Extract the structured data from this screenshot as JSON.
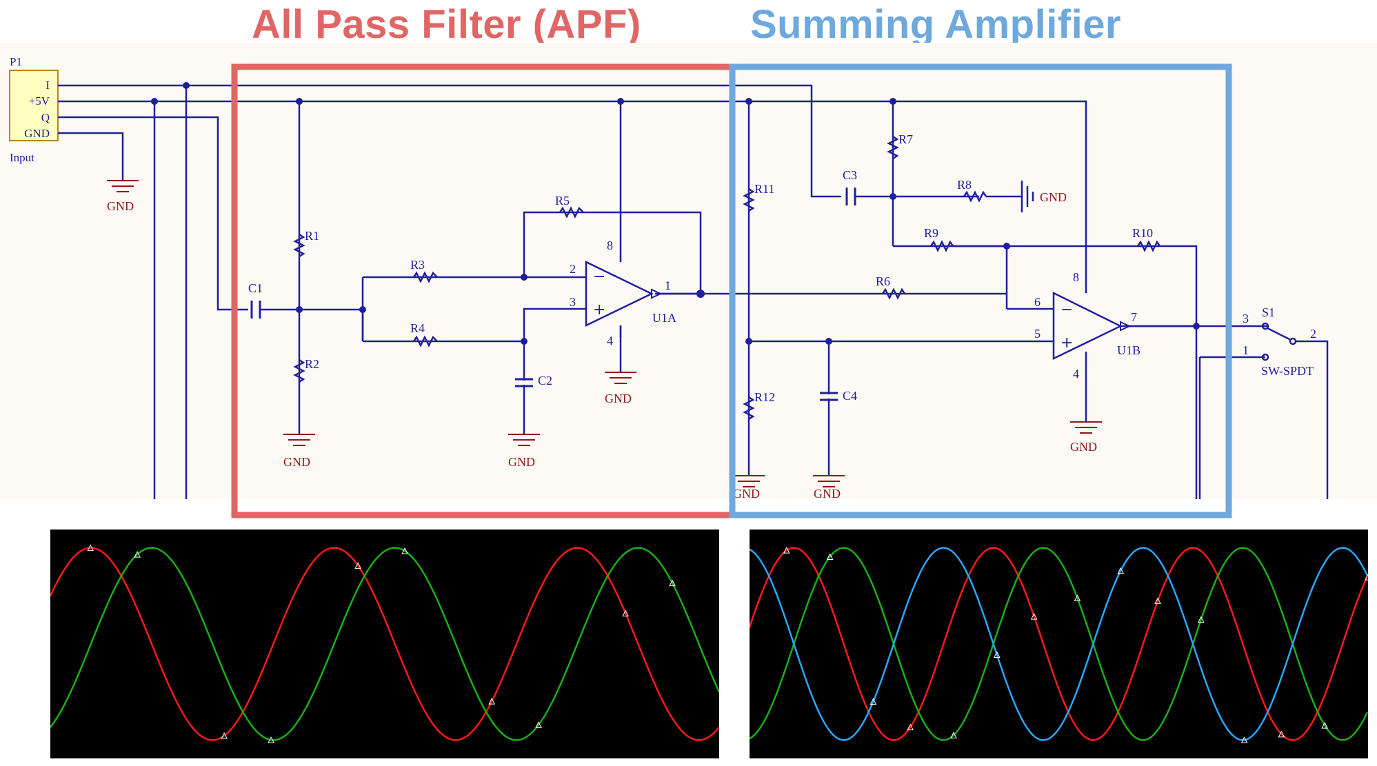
{
  "titles": {
    "apf": "All Pass Filter (APF)",
    "summing": "Summing Amplifier"
  },
  "colors": {
    "apf_box": "#e06666",
    "summing_box": "#6fa8dc",
    "wire": "#1f1f9e",
    "gnd": "#8b1a1a",
    "label": "#1f1f9e",
    "schematic_bg": "#fdf9f4",
    "trace_red": "#ff1a1a",
    "trace_green": "#18b018",
    "trace_blue": "#2aa8ff",
    "scope_bg": "#000000"
  },
  "connector": {
    "ref": "P1",
    "pins": [
      "I",
      "+5V",
      "Q",
      "GND"
    ],
    "name": "Input"
  },
  "labels": {
    "gnd": "GND",
    "r1": "R1",
    "r2": "R2",
    "r3": "R3",
    "r4": "R4",
    "r5": "R5",
    "r6": "R6",
    "r7": "R7",
    "r8": "R8",
    "r9": "R9",
    "r10": "R10",
    "r11": "R11",
    "r12": "R12",
    "c1": "C1",
    "c2": "C2",
    "c3": "C3",
    "c4": "C4",
    "u1a": "U1A",
    "u1b": "U1B",
    "s1": "S1",
    "sw": "SW-SPDT",
    "pin1": "1",
    "pin2": "2",
    "pin3": "3",
    "pin4": "4",
    "pin5": "5",
    "pin6": "6",
    "pin7": "7",
    "pin8": "8"
  },
  "scopes": {
    "left": {
      "traces": [
        {
          "color": "red",
          "periods_visible": 2.75,
          "phase_deg": 30
        },
        {
          "color": "green",
          "periods_visible": 2.75,
          "phase_deg": -60
        }
      ]
    },
    "right": {
      "traces": [
        {
          "color": "red",
          "periods_visible": 3.1,
          "phase_deg": 10
        },
        {
          "color": "green",
          "periods_visible": 3.1,
          "phase_deg": -80
        },
        {
          "color": "blue",
          "periods_visible": 3.1,
          "phase_deg": 100
        }
      ]
    }
  }
}
